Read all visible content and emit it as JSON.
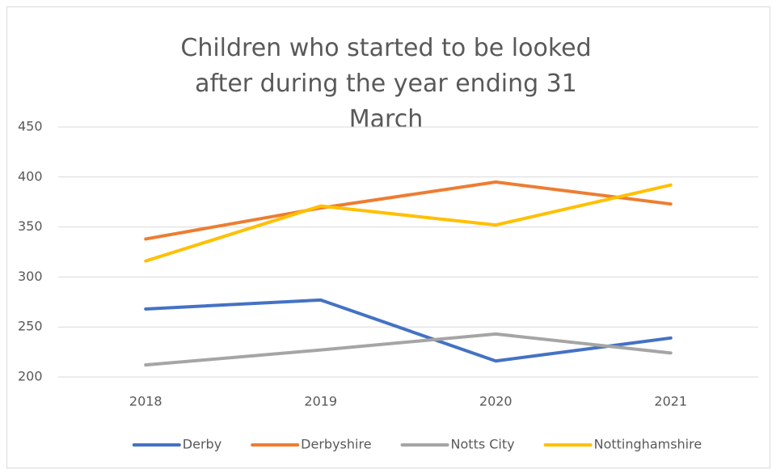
{
  "chart_data": {
    "type": "line",
    "title": "Children who started to be looked after during the year ending 31 March",
    "categories": [
      "2018",
      "2019",
      "2020",
      "2021"
    ],
    "series": [
      {
        "name": "Derby",
        "color": "#4472c4",
        "values": [
          268,
          277,
          216,
          239
        ]
      },
      {
        "name": "Derbyshire",
        "color": "#ed7d31",
        "values": [
          338,
          369,
          395,
          373
        ]
      },
      {
        "name": "Notts City",
        "color": "#a5a5a5",
        "values": [
          212,
          227,
          243,
          224
        ]
      },
      {
        "name": "Nottinghamshire",
        "color": "#ffc000",
        "values": [
          316,
          371,
          352,
          392
        ]
      }
    ],
    "ylim": [
      200,
      450
    ],
    "yticks": [
      200,
      250,
      300,
      350,
      400,
      450
    ],
    "grid": true,
    "legend": "bottom"
  }
}
